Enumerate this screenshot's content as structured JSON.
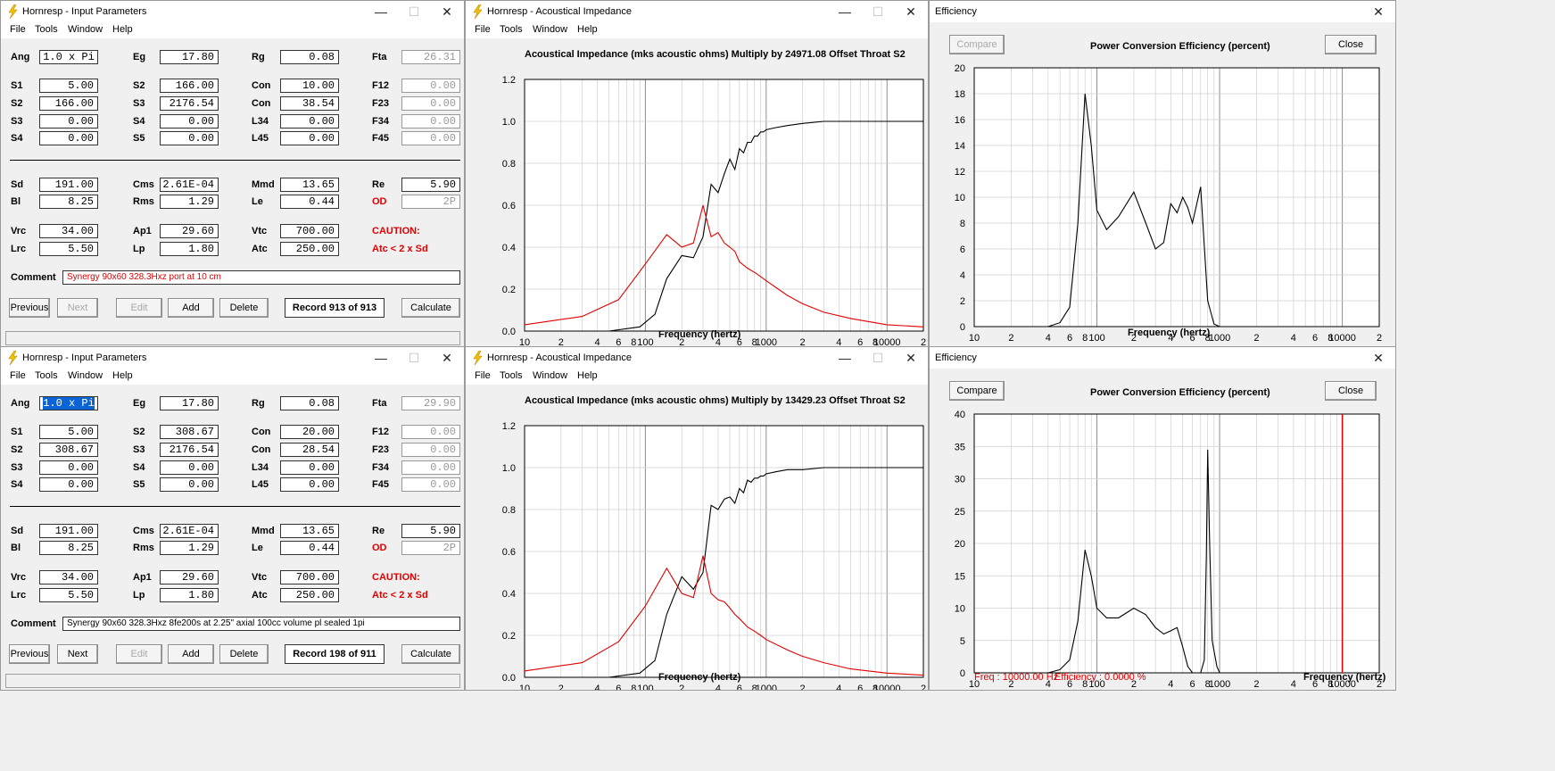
{
  "colors": {
    "curve_black": "#000000",
    "curve_red": "#e00000",
    "grid_minor": "#cfcfcf",
    "grid_major": "#8f8f8f",
    "highlight": "#0a64d6"
  },
  "menus": [
    "File",
    "Tools",
    "Window",
    "Help"
  ],
  "win_controls": {
    "minimize": "—",
    "maximize": "☐",
    "close": "✕"
  },
  "input_windows": [
    {
      "title": "Hornresp - Input Parameters",
      "rows1": [
        [
          {
            "label": "Ang",
            "value": "1.0 x Pi",
            "mode": "center"
          },
          {
            "label": "Eg",
            "value": "17.80"
          },
          {
            "label": "Rg",
            "value": "0.08"
          },
          {
            "label": "Fta",
            "value": "26.31",
            "mode": "gray"
          }
        ],
        [
          {
            "label": "S1",
            "value": "5.00"
          },
          {
            "label": "S2",
            "value": "166.00"
          },
          {
            "label": "Con",
            "value": "10.00"
          },
          {
            "label": "F12",
            "value": "0.00",
            "mode": "gray"
          }
        ],
        [
          {
            "label": "S2",
            "value": "166.00"
          },
          {
            "label": "S3",
            "value": "2176.54"
          },
          {
            "label": "Con",
            "value": "38.54"
          },
          {
            "label": "F23",
            "value": "0.00",
            "mode": "gray"
          }
        ],
        [
          {
            "label": "S3",
            "value": "0.00"
          },
          {
            "label": "S4",
            "value": "0.00"
          },
          {
            "label": "L34",
            "value": "0.00"
          },
          {
            "label": "F34",
            "value": "0.00",
            "mode": "gray"
          }
        ],
        [
          {
            "label": "S4",
            "value": "0.00"
          },
          {
            "label": "S5",
            "value": "0.00"
          },
          {
            "label": "L45",
            "value": "0.00"
          },
          {
            "label": "F45",
            "value": "0.00",
            "mode": "gray"
          }
        ]
      ],
      "rows2": [
        [
          {
            "label": "Sd",
            "value": "191.00"
          },
          {
            "label": "Cms",
            "value": "2.61E-04"
          },
          {
            "label": "Mmd",
            "value": "13.65"
          },
          {
            "label": "Re",
            "value": "5.90"
          }
        ],
        [
          {
            "label": "Bl",
            "value": "8.25"
          },
          {
            "label": "Rms",
            "value": "1.29"
          },
          {
            "label": "Le",
            "value": "0.44"
          },
          {
            "label": "OD",
            "value": "2P",
            "mode": "gray",
            "red_label": true
          }
        ],
        [
          {
            "label": "Vrc",
            "value": "34.00"
          },
          {
            "label": "Ap1",
            "value": "29.60"
          },
          {
            "label": "Vtc",
            "value": "700.00"
          },
          {
            "label": "CAUTION:",
            "red_label": true,
            "nofield": true
          }
        ],
        [
          {
            "label": "Lrc",
            "value": "5.50"
          },
          {
            "label": "Lp",
            "value": "1.80"
          },
          {
            "label": "Atc",
            "value": "250.00"
          },
          {
            "label": "Atc < 2 x Sd",
            "red_label": true,
            "nofield": true
          }
        ]
      ],
      "comment_label": "Comment",
      "comment": "Synergy 90x60  328.3Hxz port at 10 cm",
      "comment_red": true,
      "buttons": {
        "previous": "Previous",
        "next": "Next",
        "edit": "Edit",
        "add": "Add",
        "delete": "Delete",
        "record": "Record 913 of 913",
        "calculate": "Calculate"
      },
      "next_disabled": true
    },
    {
      "title": "Hornresp - Input Parameters",
      "rows1": [
        [
          {
            "label": "Ang",
            "value": "1.0 x Pi",
            "mode": "sel"
          },
          {
            "label": "Eg",
            "value": "17.80"
          },
          {
            "label": "Rg",
            "value": "0.08"
          },
          {
            "label": "Fta",
            "value": "29.90",
            "mode": "gray"
          }
        ],
        [
          {
            "label": "S1",
            "value": "5.00"
          },
          {
            "label": "S2",
            "value": "308.67"
          },
          {
            "label": "Con",
            "value": "20.00"
          },
          {
            "label": "F12",
            "value": "0.00",
            "mode": "gray"
          }
        ],
        [
          {
            "label": "S2",
            "value": "308.67"
          },
          {
            "label": "S3",
            "value": "2176.54"
          },
          {
            "label": "Con",
            "value": "28.54"
          },
          {
            "label": "F23",
            "value": "0.00",
            "mode": "gray"
          }
        ],
        [
          {
            "label": "S3",
            "value": "0.00"
          },
          {
            "label": "S4",
            "value": "0.00"
          },
          {
            "label": "L34",
            "value": "0.00"
          },
          {
            "label": "F34",
            "value": "0.00",
            "mode": "gray"
          }
        ],
        [
          {
            "label": "S4",
            "value": "0.00"
          },
          {
            "label": "S5",
            "value": "0.00"
          },
          {
            "label": "L45",
            "value": "0.00"
          },
          {
            "label": "F45",
            "value": "0.00",
            "mode": "gray"
          }
        ]
      ],
      "rows2": [
        [
          {
            "label": "Sd",
            "value": "191.00"
          },
          {
            "label": "Cms",
            "value": "2.61E-04"
          },
          {
            "label": "Mmd",
            "value": "13.65"
          },
          {
            "label": "Re",
            "value": "5.90"
          }
        ],
        [
          {
            "label": "Bl",
            "value": "8.25"
          },
          {
            "label": "Rms",
            "value": "1.29"
          },
          {
            "label": "Le",
            "value": "0.44"
          },
          {
            "label": "OD",
            "value": "2P",
            "mode": "gray",
            "red_label": true
          }
        ],
        [
          {
            "label": "Vrc",
            "value": "34.00"
          },
          {
            "label": "Ap1",
            "value": "29.60"
          },
          {
            "label": "Vtc",
            "value": "700.00"
          },
          {
            "label": "CAUTION:",
            "red_label": true,
            "nofield": true
          }
        ],
        [
          {
            "label": "Lrc",
            "value": "5.50"
          },
          {
            "label": "Lp",
            "value": "1.80"
          },
          {
            "label": "Atc",
            "value": "250.00"
          },
          {
            "label": "Atc < 2 x Sd",
            "red_label": true,
            "nofield": true
          }
        ]
      ],
      "comment_label": "Comment",
      "comment": "Synergy 90x60  328.3Hxz  8fe200s at 2.25\" axial 100cc volume pl sealed 1pi",
      "comment_red": false,
      "buttons": {
        "previous": "Previous",
        "next": "Next",
        "edit": "Edit",
        "add": "Add",
        "delete": "Delete",
        "record": "Record 198 of 911",
        "calculate": "Calculate"
      },
      "next_disabled": false
    }
  ],
  "impedance_windows": [
    {
      "title": "Hornresp - Acoustical Impedance",
      "chart_title": "Acoustical Impedance (mks acoustic ohms)    Multiply by 24971.08    Offset Throat S2",
      "xlabel": "Frequency (hertz)"
    },
    {
      "title": "Hornresp - Acoustical Impedance",
      "chart_title": "Acoustical Impedance (mks acoustic ohms)    Multiply by 13429.23    Offset Throat S2",
      "xlabel": "Frequency (hertz)"
    }
  ],
  "efficiency_windows": [
    {
      "title": "Efficiency",
      "compare": "Compare",
      "compare_disabled": true,
      "chart_title": "Power Conversion Efficiency (percent)",
      "close": "Close",
      "xlabel": "Frequency (hertz)",
      "readout_freq": "",
      "readout_eff": ""
    },
    {
      "title": "Efficiency",
      "compare": "Compare",
      "compare_disabled": false,
      "chart_title": "Power Conversion Efficiency (percent)",
      "close": "Close",
      "xlabel": "Frequency (hertz)",
      "readout_freq": "Freq : 10000.00 Hz",
      "readout_eff": "Efficiency : 0.0000 %"
    }
  ],
  "chart_data": [
    {
      "type": "line",
      "title": "Acoustical Impedance (mks acoustic ohms)    Multiply by 24971.08    Offset Throat S2",
      "xlabel": "Frequency (hertz)",
      "ylabel": "",
      "xscale": "log",
      "xlim": [
        10,
        20000
      ],
      "ylim": [
        0,
        1.2
      ],
      "x_tick_labels": [
        "10",
        "2",
        "4",
        "6",
        "8",
        "100",
        "2",
        "4",
        "6",
        "8",
        "1000",
        "2",
        "4",
        "6",
        "8",
        "10000",
        "2"
      ],
      "y_tick_labels": [
        "0.0",
        "0.2",
        "0.4",
        "0.6",
        "0.8",
        "1.0",
        "1.2"
      ],
      "grid": true,
      "series": [
        {
          "color": "#000000",
          "x": [
            10,
            50,
            90,
            120,
            150,
            200,
            250,
            300,
            350,
            400,
            450,
            500,
            550,
            600,
            650,
            700,
            750,
            800,
            850,
            900,
            950,
            1000,
            1200,
            1500,
            2000,
            3000,
            5000,
            10000,
            20000
          ],
          "values": [
            0,
            0,
            0.02,
            0.08,
            0.25,
            0.36,
            0.35,
            0.45,
            0.7,
            0.66,
            0.75,
            0.82,
            0.77,
            0.87,
            0.85,
            0.9,
            0.9,
            0.93,
            0.93,
            0.95,
            0.95,
            0.96,
            0.97,
            0.98,
            0.99,
            1.0,
            1.0,
            1.0,
            1.0
          ]
        },
        {
          "color": "#e00000",
          "x": [
            10,
            30,
            60,
            100,
            150,
            200,
            250,
            300,
            350,
            400,
            450,
            500,
            550,
            600,
            700,
            800,
            900,
            1000,
            1500,
            2000,
            3000,
            5000,
            10000,
            20000
          ],
          "values": [
            0.03,
            0.07,
            0.15,
            0.32,
            0.46,
            0.4,
            0.42,
            0.6,
            0.45,
            0.47,
            0.42,
            0.4,
            0.38,
            0.33,
            0.3,
            0.28,
            0.26,
            0.24,
            0.17,
            0.13,
            0.09,
            0.06,
            0.03,
            0.02
          ]
        }
      ]
    },
    {
      "type": "line",
      "title": "Power Conversion Efficiency (percent)",
      "xlabel": "Frequency (hertz)",
      "ylabel": "",
      "xscale": "log",
      "xlim": [
        10,
        20000
      ],
      "ylim": [
        0,
        20
      ],
      "x_tick_labels": [
        "10",
        "2",
        "4",
        "6",
        "8",
        "100",
        "2",
        "4",
        "6",
        "8",
        "1000",
        "2",
        "4",
        "6",
        "8",
        "10000",
        "2"
      ],
      "y_tick_labels": [
        "0",
        "2",
        "4",
        "6",
        "8",
        "10",
        "12",
        "14",
        "16",
        "18",
        "20"
      ],
      "grid": true,
      "series": [
        {
          "color": "#000000",
          "x": [
            40,
            50,
            60,
            70,
            80,
            90,
            100,
            120,
            150,
            200,
            250,
            300,
            350,
            400,
            450,
            500,
            550,
            600,
            700,
            800,
            900,
            1000,
            1100,
            1200
          ],
          "values": [
            0,
            0.3,
            1.5,
            8,
            18,
            14,
            9,
            7.5,
            8.5,
            10.4,
            8,
            6,
            6.5,
            9.5,
            8.8,
            10,
            9.2,
            8,
            10.8,
            2,
            0.2,
            0,
            0,
            0
          ]
        }
      ]
    },
    {
      "type": "line",
      "title": "Acoustical Impedance (mks acoustic ohms)    Multiply by 13429.23    Offset Throat S2",
      "xlabel": "Frequency (hertz)",
      "ylabel": "",
      "xscale": "log",
      "xlim": [
        10,
        20000
      ],
      "ylim": [
        0,
        1.2
      ],
      "x_tick_labels": [
        "10",
        "2",
        "4",
        "6",
        "8",
        "100",
        "2",
        "4",
        "6",
        "8",
        "1000",
        "2",
        "4",
        "6",
        "8",
        "10000",
        "2"
      ],
      "y_tick_labels": [
        "0.0",
        "0.2",
        "0.4",
        "0.6",
        "0.8",
        "1.0",
        "1.2"
      ],
      "grid": true,
      "series": [
        {
          "color": "#000000",
          "x": [
            10,
            50,
            90,
            120,
            150,
            200,
            250,
            300,
            350,
            400,
            450,
            500,
            550,
            600,
            650,
            700,
            750,
            800,
            850,
            900,
            950,
            1000,
            1200,
            1500,
            2000,
            3000,
            5000,
            10000,
            20000
          ],
          "values": [
            0,
            0,
            0.02,
            0.08,
            0.3,
            0.48,
            0.42,
            0.5,
            0.82,
            0.8,
            0.85,
            0.86,
            0.83,
            0.9,
            0.88,
            0.94,
            0.93,
            0.95,
            0.95,
            0.96,
            0.96,
            0.97,
            0.98,
            0.99,
            0.99,
            1.0,
            1.0,
            1.0,
            1.0
          ]
        },
        {
          "color": "#e00000",
          "x": [
            10,
            30,
            60,
            100,
            150,
            200,
            250,
            300,
            350,
            400,
            450,
            500,
            550,
            600,
            700,
            800,
            900,
            1000,
            1500,
            2000,
            3000,
            5000,
            10000,
            20000
          ],
          "values": [
            0.03,
            0.07,
            0.17,
            0.34,
            0.52,
            0.4,
            0.38,
            0.58,
            0.4,
            0.37,
            0.36,
            0.33,
            0.3,
            0.28,
            0.24,
            0.22,
            0.2,
            0.18,
            0.13,
            0.1,
            0.07,
            0.04,
            0.02,
            0.01
          ]
        }
      ]
    },
    {
      "type": "line",
      "title": "Power Conversion Efficiency (percent)",
      "xlabel": "Frequency (hertz)",
      "ylabel": "",
      "xscale": "log",
      "xlim": [
        10,
        20000
      ],
      "ylim": [
        0,
        40
      ],
      "x_tick_labels": [
        "10",
        "2",
        "4",
        "6",
        "8",
        "100",
        "2",
        "4",
        "6",
        "8",
        "1000",
        "2",
        "4",
        "6",
        "8",
        "10000",
        "2"
      ],
      "y_tick_labels": [
        "0",
        "5",
        "10",
        "15",
        "20",
        "25",
        "30",
        "35",
        "40"
      ],
      "grid": true,
      "marker_x": 10000,
      "series": [
        {
          "color": "#000000",
          "x": [
            40,
            50,
            60,
            70,
            80,
            90,
            100,
            120,
            150,
            200,
            250,
            300,
            350,
            400,
            450,
            500,
            550,
            600,
            650,
            700,
            750,
            780,
            800,
            830,
            870,
            950,
            1000,
            1100
          ],
          "values": [
            0,
            0.5,
            2,
            8,
            19,
            15,
            10,
            8.5,
            8.5,
            10,
            9,
            7,
            6,
            6.5,
            7,
            4,
            1,
            0,
            0,
            0,
            2,
            18,
            34.5,
            20,
            5,
            1,
            0,
            0
          ]
        }
      ]
    }
  ]
}
